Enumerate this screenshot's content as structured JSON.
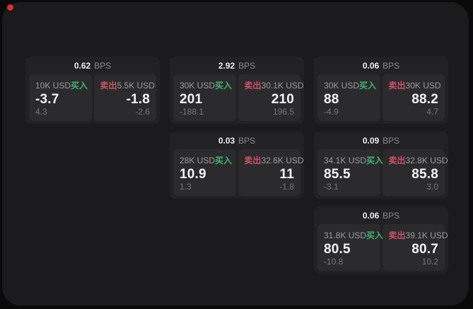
{
  "app": {
    "surface_color": "#1b1b1d",
    "background_color": "#0a0a0a",
    "card_color": "#222224",
    "panel_color": "#2b2b2d",
    "buy_color": "#44b36b",
    "sell_color": "#cf5068",
    "record_dot_color": "#e12b2b"
  },
  "labels": {
    "buy": "买入",
    "sell": "卖出",
    "bps_unit": "BPS"
  },
  "cards": [
    {
      "bps": "0.62",
      "buy": {
        "amount": "10K USD",
        "value": "-3.7",
        "sub": "4.3"
      },
      "sell": {
        "amount": "5.5K USD",
        "value": "-1.8",
        "sub": "-2.6"
      }
    },
    {
      "bps": "2.92",
      "buy": {
        "amount": "30K USD",
        "value": "201",
        "sub": "-188.1"
      },
      "sell": {
        "amount": "30.1K USD",
        "value": "210",
        "sub": "196.5"
      }
    },
    {
      "bps": "0.06",
      "buy": {
        "amount": "30K USD",
        "value": "88",
        "sub": "-4.9"
      },
      "sell": {
        "amount": "30K USD",
        "value": "88.2",
        "sub": "4.7"
      }
    },
    {
      "bps": "0.03",
      "buy": {
        "amount": "28K USD",
        "value": "10.9",
        "sub": "1.3"
      },
      "sell": {
        "amount": "32.6K USD",
        "value": "11",
        "sub": "-1.8"
      }
    },
    {
      "bps": "0.09",
      "buy": {
        "amount": "34.1K USD",
        "value": "85.5",
        "sub": "-3.1"
      },
      "sell": {
        "amount": "32.8K USD",
        "value": "85.8",
        "sub": "3.0"
      }
    },
    {
      "bps": "0.06",
      "buy": {
        "amount": "31.8K USD",
        "value": "80.5",
        "sub": "-10.8"
      },
      "sell": {
        "amount": "39.1K USD",
        "value": "80.7",
        "sub": "10.2"
      }
    }
  ]
}
